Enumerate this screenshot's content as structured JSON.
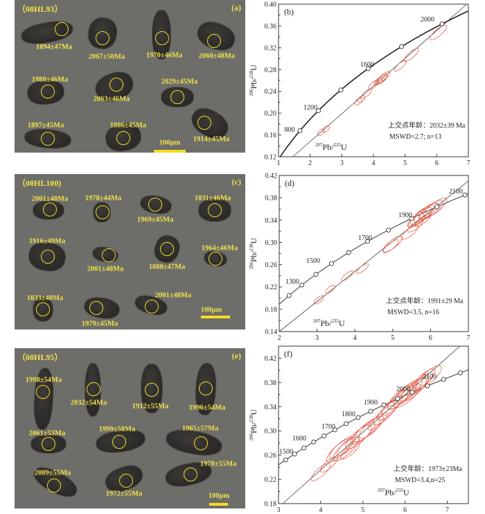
{
  "panels": [
    {
      "sample": "（08HL93）",
      "label": "(a)",
      "scale_bar": "100μm",
      "ages": [
        "1894±47Ma",
        "2067±50Ma",
        "1970±46Ma",
        "2060±48Ma",
        "1988±46Ma",
        "2063±46Ma",
        "2029±45Ma",
        "1914±45Ma",
        "1897±45Ma",
        "1886±45Ma"
      ]
    },
    {
      "sample": "（08HL100)",
      "label": "(c)",
      "scale_bar": "100μm",
      "ages": [
        "2001±48Ma",
        "1978±44Ma",
        "1969±45Ma",
        "1831±46Ma",
        "1916±49Ma",
        "2001±48Ma",
        "1888±47Ma",
        "1964±46Ma",
        "1833±48Ma",
        "1979±45Ma",
        "2001±48Ma"
      ]
    },
    {
      "sample": "（08HL95）",
      "label": "(e)",
      "scale_bar": "100μm",
      "ages": [
        "1998±54Ma",
        "2032±54Ma",
        "1912±55Ma",
        "1996±54Ma",
        "2061±53Ma",
        "1999±58Ma",
        "1965±57Ma",
        "2009±55Ma",
        "1972±55Ma",
        "1978±55Ma"
      ]
    }
  ],
  "chart_data": [
    {
      "type": "scatter",
      "panel_label": "(b)",
      "xlabel": {
        "m1": "207",
        "e1": "Pb/",
        "m2": "235",
        "e2": "U"
      },
      "ylabel": {
        "m1": "206",
        "e1": "Pb/",
        "m2": "238",
        "e2": "U"
      },
      "xlim": [
        1,
        7
      ],
      "ylim": [
        0.12,
        0.4
      ],
      "xticks": [
        "1",
        "2",
        "3",
        "4",
        "5",
        "6",
        "7"
      ],
      "yticks": [
        "0.12",
        "0.16",
        "0.20",
        "0.24",
        "0.28",
        "0.32",
        "0.36",
        "0.40"
      ],
      "concordia_points_ma": [
        1000,
        1200,
        1400,
        1600,
        1800,
        2000
      ],
      "concordia_labels": [
        "800",
        "1200",
        "1600",
        "2000"
      ],
      "discordia": [
        [
          1.45,
          0.12
        ],
        [
          6.95,
          0.4
        ]
      ],
      "ellipses": [
        [
          2.35,
          0.165,
          0.1
        ],
        [
          2.5,
          0.171,
          0.1
        ],
        [
          3.52,
          0.221,
          0.1
        ],
        [
          3.62,
          0.226,
          0.1
        ],
        [
          3.78,
          0.236,
          0.15
        ],
        [
          4.0,
          0.252,
          0.15
        ],
        [
          4.15,
          0.258,
          0.12
        ],
        [
          4.25,
          0.263,
          0.18
        ],
        [
          4.32,
          0.266,
          0.2
        ],
        [
          4.28,
          0.262,
          0.15
        ],
        [
          4.85,
          0.287,
          0.18
        ],
        [
          5.2,
          0.307,
          0.22
        ],
        [
          6.05,
          0.348,
          0.25
        ]
      ],
      "annotation": [
        "上交点年龄：2032±39 Ma",
        "MSWD=2.7; n=13"
      ]
    },
    {
      "type": "scatter",
      "panel_label": "(d)",
      "xlabel": {
        "m1": "207",
        "e1": "Pb/",
        "m2": "235",
        "e2": "U"
      },
      "ylabel": {
        "m1": "206",
        "e1": "Pb/",
        "m2": "238",
        "e2": "U"
      },
      "xlim": [
        2,
        7
      ],
      "ylim": [
        0.14,
        0.42
      ],
      "xticks": [
        "2",
        "3",
        "4",
        "5",
        "6",
        "7"
      ],
      "yticks": [
        "0.14",
        "0.18",
        "0.22",
        "0.26",
        "0.30",
        "0.34",
        "0.38",
        "0.42"
      ],
      "concordia_points_ma": [
        1200,
        1300,
        1400,
        1500,
        1600,
        1700,
        1800,
        1900,
        2000,
        2100
      ],
      "concordia_labels": [
        "1300",
        "1500",
        "1700",
        "1900",
        "2100"
      ],
      "discordia": [
        [
          2.0,
          0.14
        ],
        [
          7.0,
          0.41
        ]
      ],
      "ellipses": [
        [
          3.05,
          0.197,
          0.12
        ],
        [
          3.35,
          0.216,
          0.12
        ],
        [
          3.8,
          0.24,
          0.15
        ],
        [
          4.2,
          0.253,
          0.15
        ],
        [
          4.95,
          0.293,
          0.2
        ],
        [
          5.0,
          0.297,
          0.25
        ],
        [
          5.45,
          0.318,
          0.22
        ],
        [
          5.6,
          0.33,
          0.2
        ],
        [
          5.65,
          0.342,
          0.25
        ],
        [
          5.72,
          0.345,
          0.3
        ],
        [
          5.8,
          0.34,
          0.2
        ],
        [
          5.78,
          0.349,
          0.3
        ],
        [
          5.88,
          0.353,
          0.3
        ],
        [
          5.95,
          0.356,
          0.25
        ],
        [
          6.02,
          0.358,
          0.3
        ],
        [
          6.12,
          0.362,
          0.3
        ]
      ],
      "annotation": [
        "上交点年龄：1991±29 Ma",
        "MSWD=3.5, n=16"
      ]
    },
    {
      "type": "scatter",
      "panel_label": "(f)",
      "xlabel": {
        "m1": "207",
        "e1": "Pb/",
        "m2": "235",
        "e2": "U"
      },
      "ylabel": {
        "m1": "206",
        "e1": "Pb/",
        "m2": "238",
        "e2": "U"
      },
      "xlim": [
        3,
        7.5
      ],
      "ylim": [
        0.18,
        0.44
      ],
      "xticks": [
        "3",
        "4",
        "5",
        "6",
        "7"
      ],
      "yticks": [
        "0.18",
        "0.22",
        "0.26",
        "0.30",
        "0.34",
        "0.38",
        "0.42"
      ],
      "concordia_points_ma": [
        1450,
        1500,
        1550,
        1600,
        1650,
        1700,
        1750,
        1800,
        1850,
        1900,
        1950,
        2000,
        2050,
        2100,
        2150
      ],
      "concordia_labels": [
        "1500",
        "1600",
        "1700",
        "1800",
        "1900",
        "2000",
        "2100"
      ],
      "discordia": [
        [
          3.1,
          0.18
        ],
        [
          7.3,
          0.44
        ]
      ],
      "ellipses": [
        [
          4.0,
          0.232,
          0.22
        ],
        [
          4.2,
          0.245,
          0.2
        ],
        [
          4.45,
          0.268,
          0.3
        ],
        [
          4.5,
          0.272,
          0.28
        ],
        [
          4.6,
          0.27,
          0.3
        ],
        [
          4.65,
          0.276,
          0.25
        ],
        [
          4.7,
          0.268,
          0.22
        ],
        [
          4.9,
          0.29,
          0.3
        ],
        [
          5.0,
          0.296,
          0.28
        ],
        [
          5.1,
          0.302,
          0.3
        ],
        [
          5.2,
          0.306,
          0.28
        ],
        [
          5.35,
          0.316,
          0.22
        ],
        [
          5.5,
          0.326,
          0.25
        ],
        [
          5.6,
          0.334,
          0.25
        ],
        [
          5.7,
          0.342,
          0.25
        ],
        [
          5.85,
          0.352,
          0.25
        ],
        [
          5.9,
          0.356,
          0.3
        ],
        [
          6.0,
          0.362,
          0.28
        ],
        [
          6.05,
          0.358,
          0.3
        ],
        [
          6.1,
          0.366,
          0.3
        ],
        [
          6.2,
          0.368,
          0.3
        ],
        [
          6.3,
          0.374,
          0.25
        ],
        [
          6.4,
          0.38,
          0.25
        ],
        [
          6.45,
          0.386,
          0.25
        ],
        [
          6.55,
          0.388,
          0.3
        ]
      ],
      "annotation": [
        "上交年龄：1973±23Ma",
        "MSWD=3.4,n=25"
      ]
    }
  ]
}
